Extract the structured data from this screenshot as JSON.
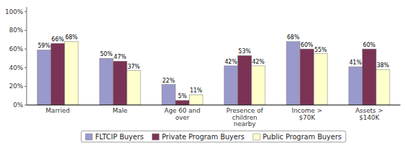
{
  "chart_data": {
    "type": "bar",
    "categories": [
      "Married",
      "Male",
      "Age 60 and\nover",
      "Presence of\nchildren\nnearby",
      "Income >\n$70K",
      "Assets >\n$140K"
    ],
    "series": [
      {
        "name": "FLTCIP Buyers",
        "color": "#9999CC",
        "values": [
          0.59,
          0.5,
          0.22,
          0.42,
          0.68,
          0.41
        ],
        "value_labels": [
          "59%",
          "50%",
          "22%",
          "42%",
          "68%",
          "41%"
        ]
      },
      {
        "name": "Private Program Buyers",
        "color": "#7B3355",
        "values": [
          0.66,
          0.47,
          0.05,
          0.53,
          0.6,
          0.6
        ],
        "value_labels": [
          "66%",
          "47%",
          "5%",
          "53%",
          "60%",
          "60%"
        ]
      },
      {
        "name": "Public Program Buyers",
        "color": "#FFFFCC",
        "values": [
          0.68,
          0.37,
          0.11,
          0.42,
          0.55,
          0.38
        ],
        "value_labels": [
          "68%",
          "37%",
          "11%",
          "42%",
          "55%",
          "38%"
        ]
      }
    ],
    "ylim": [
      0,
      1.05
    ],
    "yticks": [
      {
        "value": 0.0,
        "label": "0%"
      },
      {
        "value": 0.2,
        "label": "20%"
      },
      {
        "value": 0.4,
        "label": "40%"
      },
      {
        "value": 0.6,
        "label": "60%"
      },
      {
        "value": 0.8,
        "label": "80%"
      },
      {
        "value": 1.0,
        "label": "100%"
      }
    ],
    "grid": false,
    "legend": "bottom",
    "data_labels": true
  }
}
